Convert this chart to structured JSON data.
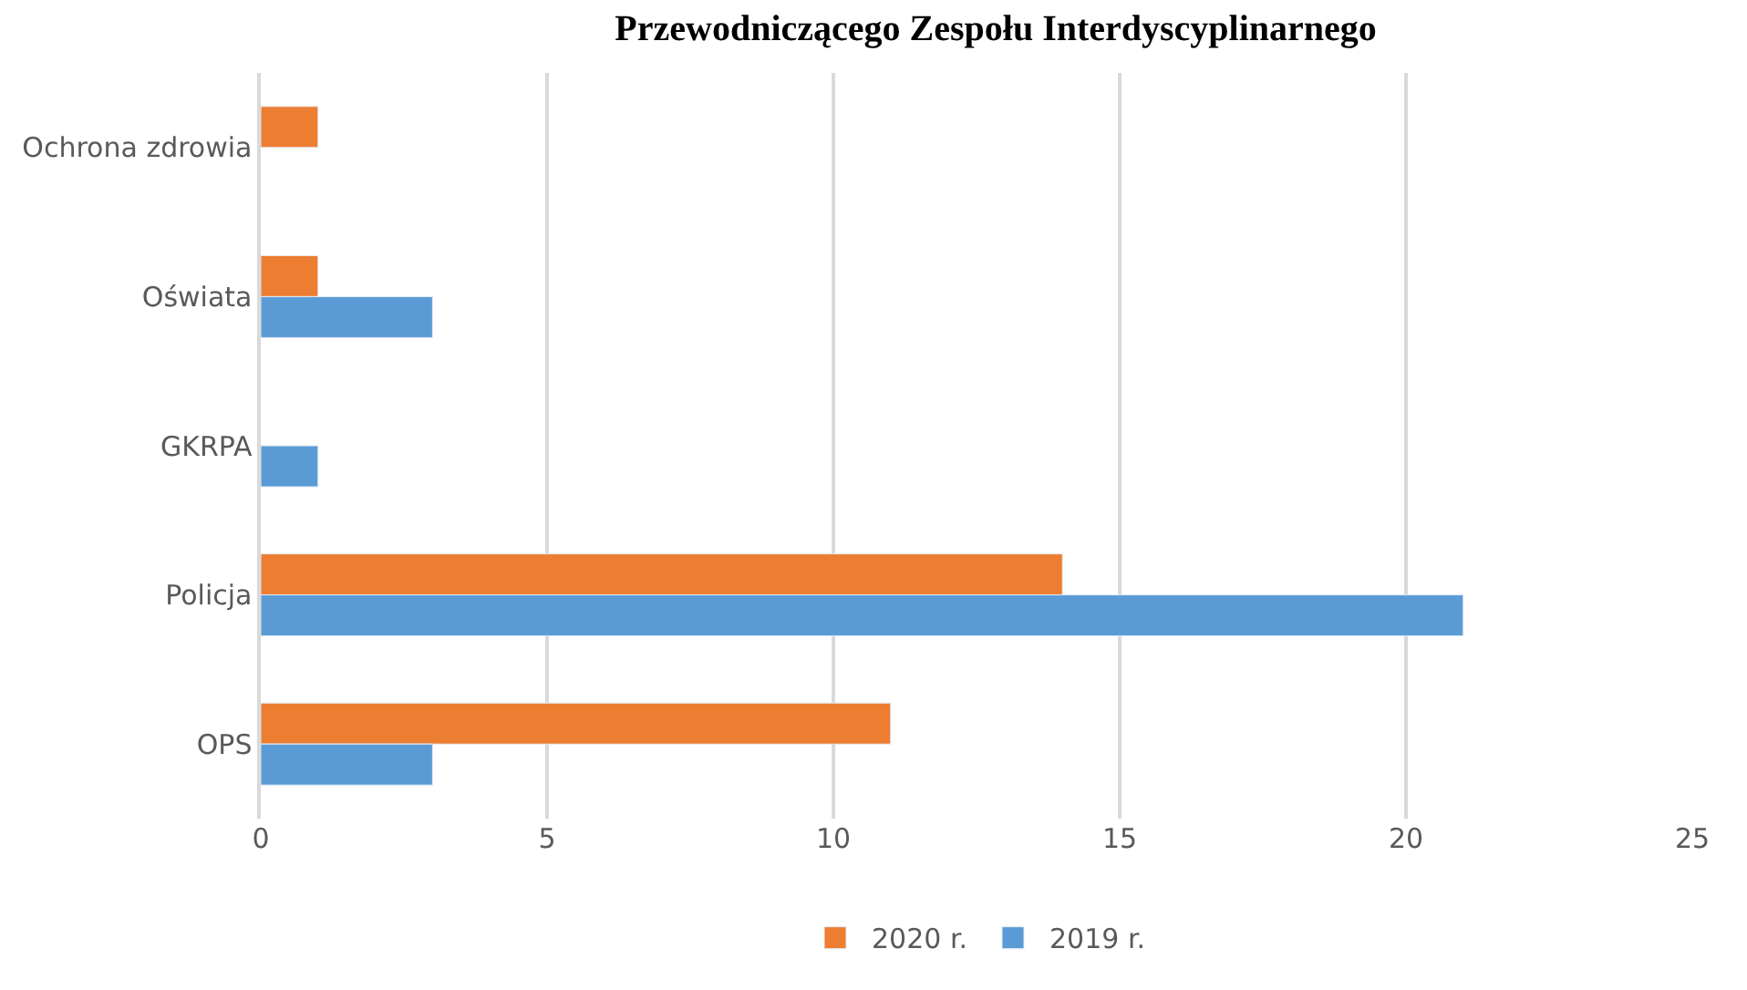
{
  "chart_data": {
    "type": "bar",
    "orientation": "horizontal",
    "title": "Przewodniczącego Zespołu Interdyscyplinarnego",
    "categories": [
      "Ochrona zdrowia",
      "Oświata",
      "GKRPA",
      "Policja",
      "OPS"
    ],
    "series": [
      {
        "name": "2020 r.",
        "color": "#ed7d31",
        "values": [
          1,
          1,
          null,
          14,
          11
        ]
      },
      {
        "name": "2019 r.",
        "color": "#5b9bd5",
        "values": [
          null,
          3,
          1,
          21,
          3
        ]
      }
    ],
    "xlim": [
      0,
      25
    ],
    "xticks": [
      0,
      5,
      10,
      15,
      20,
      25
    ],
    "grid": "x",
    "legend": "bottom"
  }
}
